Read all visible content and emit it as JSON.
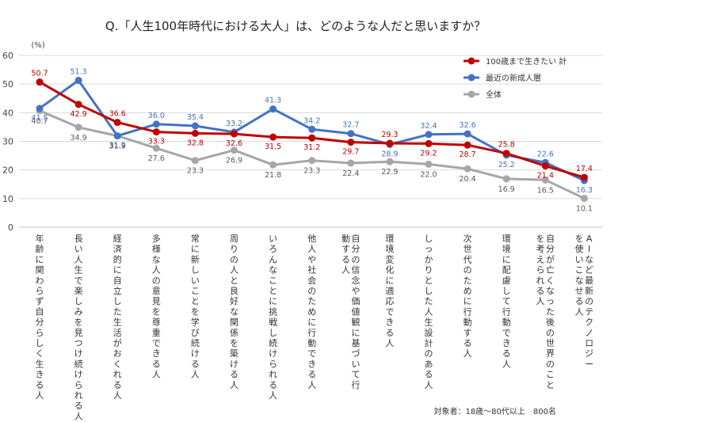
{
  "chart_data": {
    "type": "line",
    "title": "Q.「人生100年時代における大人」は、どのような人だと思いますか？",
    "ylabel": "(%)",
    "ylim": [
      0,
      60
    ],
    "yticks": [
      0,
      10,
      20,
      30,
      40,
      50,
      60
    ],
    "grid": true,
    "legend_position": "top-right",
    "categories": [
      "年齢に関わらず自分らしく生きる人",
      "長い人生で楽しみを見つけ続けられる人",
      "経済的に自立した生活がおくれる人",
      "多様な人の意見を尊重できる人",
      "常に新しいことを学び続ける人",
      "周りの人と良好な関係を築ける人",
      "いろんなことに挑戦し続けられる人",
      "他人や社会のために行動できる人",
      "自分の信念や価値観に基づいて行動する人",
      "環境変化に適応できる人",
      "しっかりとした人生設計のある人",
      "次世代のために行動する人",
      "環境に配慮して行動できる人",
      "自分が亡くなった後の世界のことを考えられる人",
      "AIなど最新のテクノロジーを使いこなせる人"
    ],
    "series": [
      {
        "name": "100歳まで生きたい 計",
        "color": "#c00000",
        "values": [
          50.7,
          42.9,
          36.6,
          33.3,
          32.8,
          32.6,
          31.5,
          31.2,
          29.7,
          29.3,
          29.2,
          28.7,
          25.8,
          21.4,
          17.4
        ]
      },
      {
        "name": "最近の新成人層",
        "color": "#4472c4",
        "values": [
          41.5,
          51.3,
          31.9,
          36.0,
          35.4,
          33.2,
          41.3,
          34.2,
          32.7,
          28.9,
          32.4,
          32.6,
          25.2,
          22.6,
          16.3
        ]
      },
      {
        "name": "全体",
        "color": "#a6a6a6",
        "values": [
          40.7,
          34.9,
          31.9,
          27.6,
          23.3,
          26.9,
          21.8,
          23.3,
          22.4,
          22.9,
          22.0,
          20.4,
          16.9,
          16.5,
          10.1
        ]
      }
    ],
    "annotation": "対象者：18歳～80代以上　800名"
  }
}
